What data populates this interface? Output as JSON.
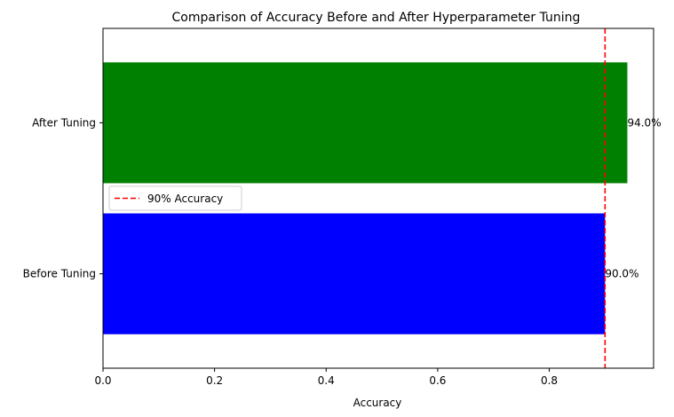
{
  "chart_data": {
    "type": "bar",
    "orientation": "horizontal",
    "title": "Comparison of Accuracy Before and After Hyperparameter Tuning",
    "xlabel": "Accuracy",
    "ylabel": "",
    "categories": [
      "Before Tuning",
      "After Tuning"
    ],
    "values": [
      0.9,
      0.94
    ],
    "value_labels": [
      "90.0%",
      "94.0%"
    ],
    "bar_colors": [
      "#0000ff",
      "#008000"
    ],
    "xlim": [
      0,
      0.987
    ],
    "xticks": [
      0.0,
      0.2,
      0.4,
      0.6,
      0.8
    ],
    "xtick_labels": [
      "0.0",
      "0.2",
      "0.4",
      "0.6",
      "0.8"
    ],
    "reference_line": {
      "value": 0.9,
      "label": "90% Accuracy",
      "color": "#ff0000",
      "style": "dashed"
    },
    "legend": {
      "placement": "center-left",
      "entries": [
        "90% Accuracy"
      ]
    },
    "grid": false
  }
}
